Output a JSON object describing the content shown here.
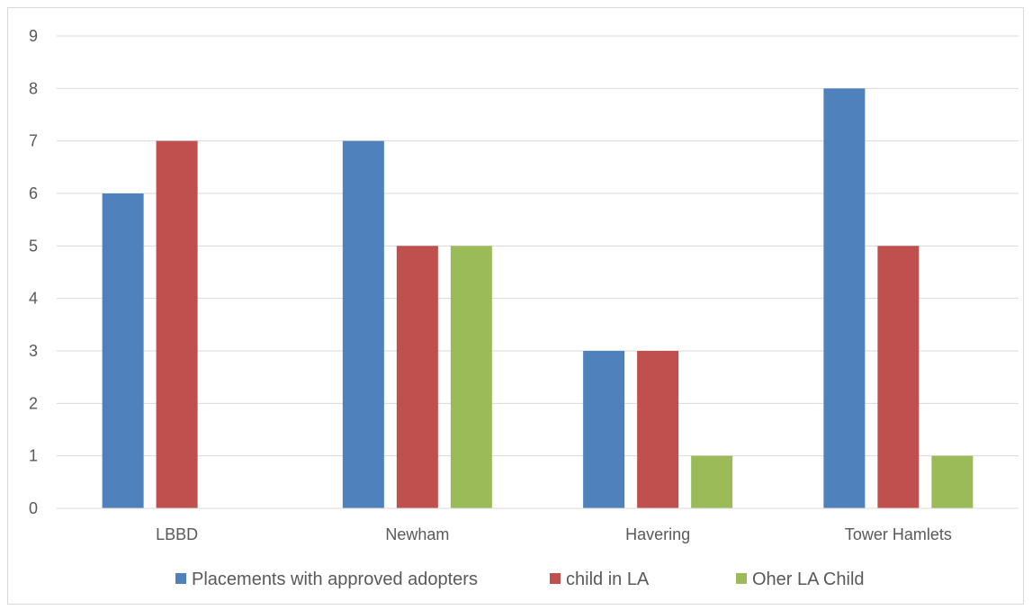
{
  "chart_data": {
    "type": "bar",
    "title": "",
    "xlabel": "",
    "ylabel": "",
    "categories": [
      "LBBD",
      "Newham",
      "Havering",
      "Tower Hamlets"
    ],
    "series": [
      {
        "name": "Placements with approved adopters",
        "color": "#4f81bd",
        "values": [
          6,
          7,
          3,
          8
        ]
      },
      {
        "name": "child in LA",
        "color": "#c0504d",
        "values": [
          7,
          5,
          3,
          5
        ]
      },
      {
        "name": "Oher LA Child",
        "color": "#9bbb59",
        "values": [
          null,
          5,
          1,
          1
        ]
      }
    ],
    "ylim": [
      0,
      9
    ],
    "yticks": [
      0,
      1,
      2,
      3,
      4,
      5,
      6,
      7,
      8,
      9
    ],
    "grid": true,
    "legend_position": "bottom"
  }
}
